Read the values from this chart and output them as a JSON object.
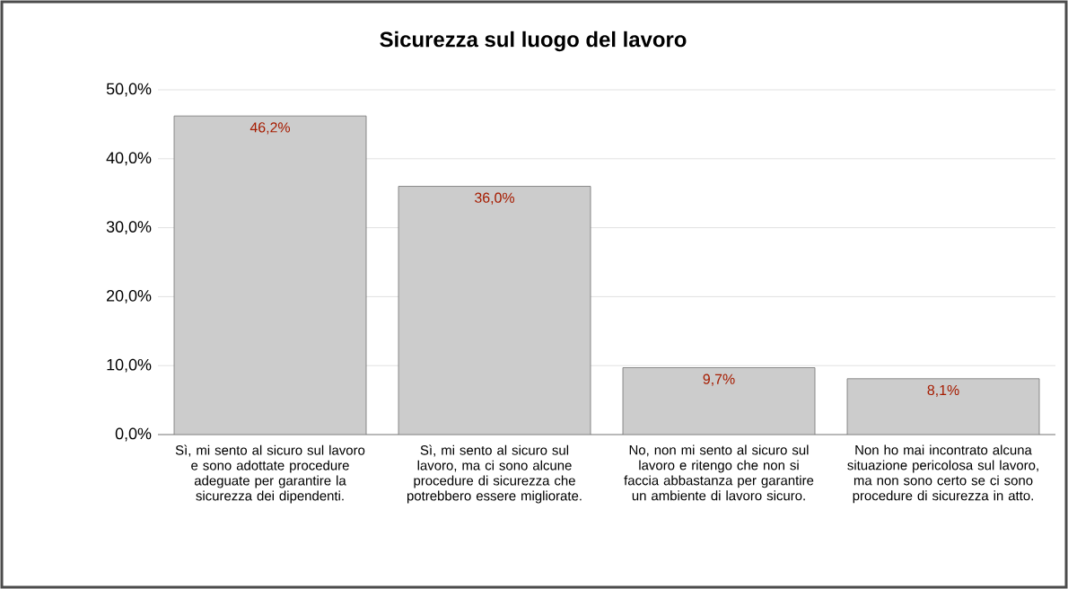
{
  "chart_data": {
    "type": "bar",
    "title": "Sicurezza sul luogo del lavoro",
    "categories": [
      "Sì, mi sento al sicuro sul lavoro e sono adottate procedure adeguate per garantire la sicurezza dei dipendenti.",
      "Sì, mi sento al sicuro sul lavoro, ma ci sono alcune procedure di sicurezza che potrebbero essere migliorate.",
      "No, non mi sento al sicuro sul lavoro e ritengo che non si faccia abbastanza per garantire un ambiente di lavoro sicuro.",
      "Non ho mai incontrato alcuna situazione pericolosa sul lavoro, ma non sono certo se ci sono procedure di sicurezza in atto."
    ],
    "values": [
      46.2,
      36.0,
      9.7,
      8.1
    ],
    "value_labels": [
      "46,2%",
      "36,0%",
      "9,7%",
      "8,1%"
    ],
    "color": "#cccccc",
    "ylim": [
      0,
      50
    ],
    "yticks": [
      {
        "value": 0,
        "label": "0,0%"
      },
      {
        "value": 10,
        "label": "10,0%"
      },
      {
        "value": 20,
        "label": "20,0%"
      },
      {
        "value": 30,
        "label": "30,0%"
      },
      {
        "value": 40,
        "label": "40,0%"
      },
      {
        "value": 50,
        "label": "50,0%"
      }
    ],
    "grid": "y"
  }
}
